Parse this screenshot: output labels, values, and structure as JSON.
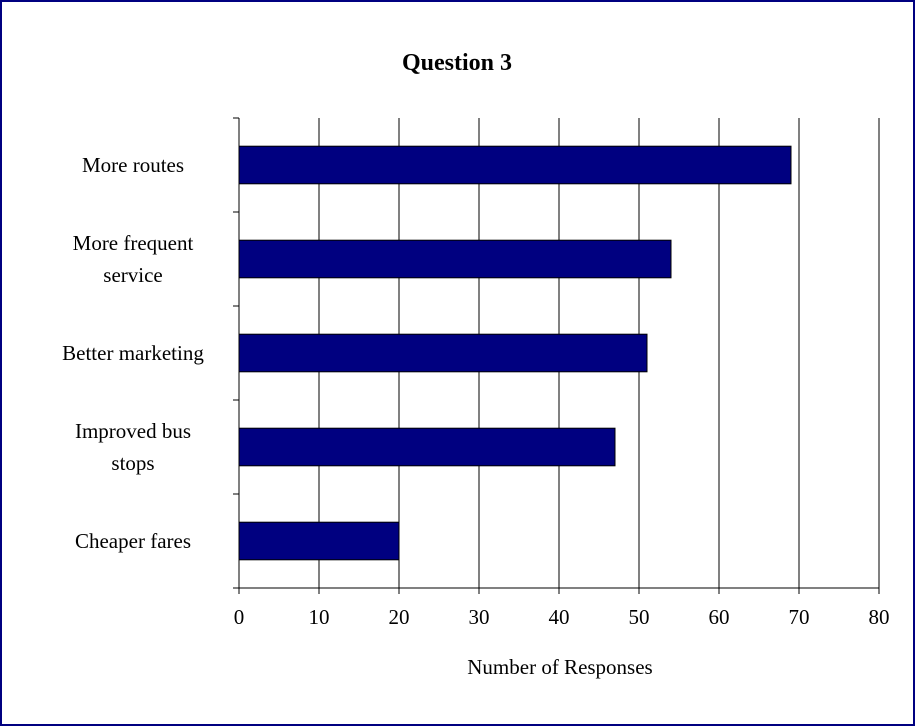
{
  "chart_data": {
    "type": "bar",
    "orientation": "horizontal",
    "title": "Question 3",
    "xlabel": "Number of Responses",
    "ylabel": "",
    "categories": [
      [
        "More routes"
      ],
      [
        "More frequent",
        "service"
      ],
      [
        "Better marketing"
      ],
      [
        "Improved bus",
        "stops"
      ],
      [
        "Cheaper fares"
      ]
    ],
    "values": [
      69,
      54,
      51,
      47,
      20
    ],
    "xlim": [
      0,
      80
    ],
    "xticks": [
      0,
      10,
      20,
      30,
      40,
      50,
      60,
      70,
      80
    ],
    "grid": "vertical",
    "legend": "none",
    "colors": {
      "bar_fill": "#000080",
      "bar_stroke": "#000000",
      "frame_border": "#000080",
      "gridline": "#000000"
    }
  }
}
